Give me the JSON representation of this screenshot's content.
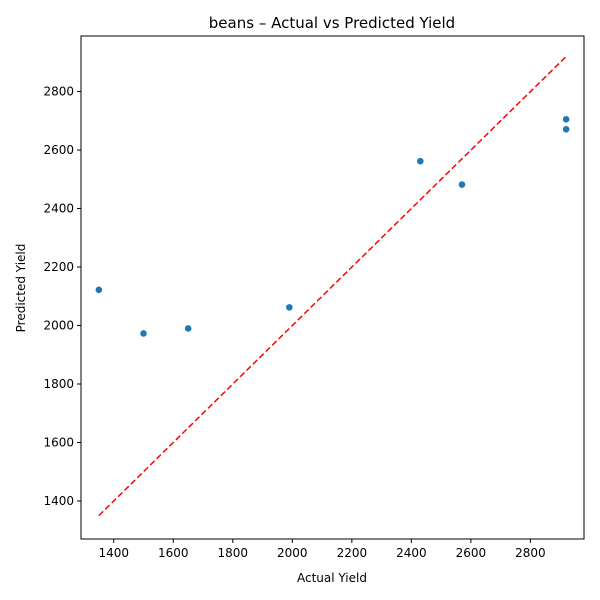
{
  "chart_data": {
    "type": "scatter",
    "title": "beans – Actual vs Predicted Yield",
    "xlabel": "Actual Yield",
    "ylabel": "Predicted Yield",
    "xlim": [
      1290,
      2980
    ],
    "ylim": [
      1270,
      2990
    ],
    "xticks": [
      1400,
      1600,
      1800,
      2000,
      2200,
      2400,
      2600,
      2800
    ],
    "yticks": [
      1400,
      1600,
      1800,
      2000,
      2200,
      2400,
      2600,
      2800
    ],
    "grid": false,
    "points": [
      {
        "x": 1350,
        "y": 2122
      },
      {
        "x": 1500,
        "y": 1973
      },
      {
        "x": 1650,
        "y": 1990
      },
      {
        "x": 1990,
        "y": 2062
      },
      {
        "x": 2430,
        "y": 2562
      },
      {
        "x": 2570,
        "y": 2482
      },
      {
        "x": 2920,
        "y": 2705
      },
      {
        "x": 2920,
        "y": 2671
      }
    ],
    "reference_line": {
      "x": [
        1350,
        2920
      ],
      "y": [
        1350,
        2920
      ],
      "style": "dashed"
    },
    "colors": {
      "points": "#1f77b4",
      "reference_line": "#ff0000"
    }
  }
}
